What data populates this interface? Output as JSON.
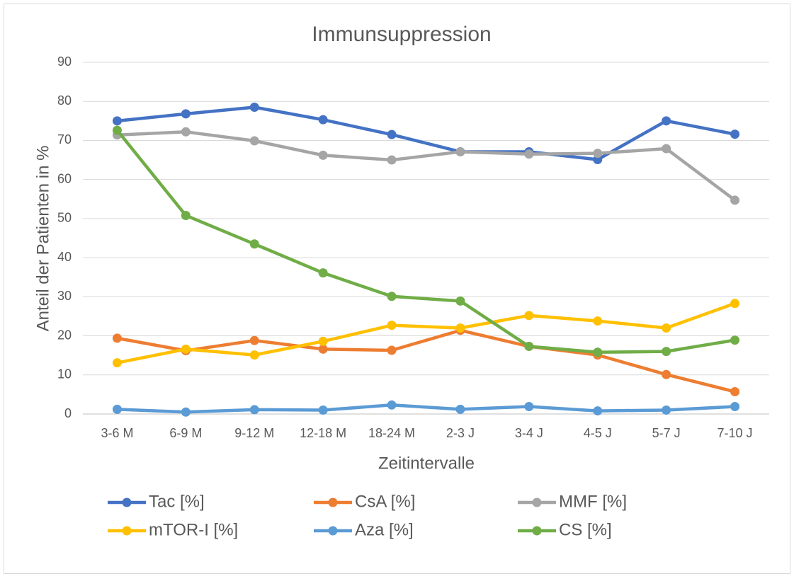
{
  "chart_data": {
    "type": "line",
    "title": "Immunsuppression",
    "x_label": "Zeitintervalle",
    "y_label": "Anteil der Patienten in %",
    "categories": [
      "3-6 M",
      "6-9 M",
      "9-12 M",
      "12-18 M",
      "18-24 M",
      "2-3 J",
      "3-4 J",
      "4-5 J",
      "5-7 J",
      "7-10 J"
    ],
    "series": [
      {
        "name": "Tac [%]",
        "color": "#4472c4",
        "values": [
          75,
          76.8,
          78.5,
          75.3,
          71.5,
          67.1,
          67.1,
          65.1,
          75,
          71.6
        ]
      },
      {
        "name": "CsA [%]",
        "color": "#ed7d31",
        "values": [
          19.4,
          16.2,
          18.8,
          16.6,
          16.3,
          21.4,
          17.3,
          15.1,
          10.1,
          5.7
        ]
      },
      {
        "name": "MMF [%]",
        "color": "#a5a5a5",
        "values": [
          71.4,
          72.2,
          69.9,
          66.2,
          65.0,
          67.1,
          66.5,
          66.7,
          67.9,
          54.7
        ]
      },
      {
        "name": "mTOR-I [%]",
        "color": "#ffc000",
        "values": [
          13.1,
          16.6,
          15.1,
          18.6,
          22.7,
          22.0,
          25.2,
          23.8,
          22.0,
          28.3
        ]
      },
      {
        "name": "Aza [%]",
        "color": "#5b9bd5",
        "values": [
          1.2,
          0.5,
          1.1,
          1.0,
          2.3,
          1.2,
          1.9,
          0.8,
          1.0,
          1.9
        ]
      },
      {
        "name": "CS [%]",
        "color": "#70ad47",
        "values": [
          72.6,
          50.8,
          43.5,
          36.1,
          30.1,
          28.9,
          17.3,
          15.8,
          16.0,
          18.9
        ]
      }
    ],
    "ylim": [
      0,
      90
    ],
    "yticks": [
      0,
      10,
      20,
      30,
      40,
      50,
      60,
      70,
      80,
      90
    ],
    "grid": true,
    "legend": "bottom"
  }
}
